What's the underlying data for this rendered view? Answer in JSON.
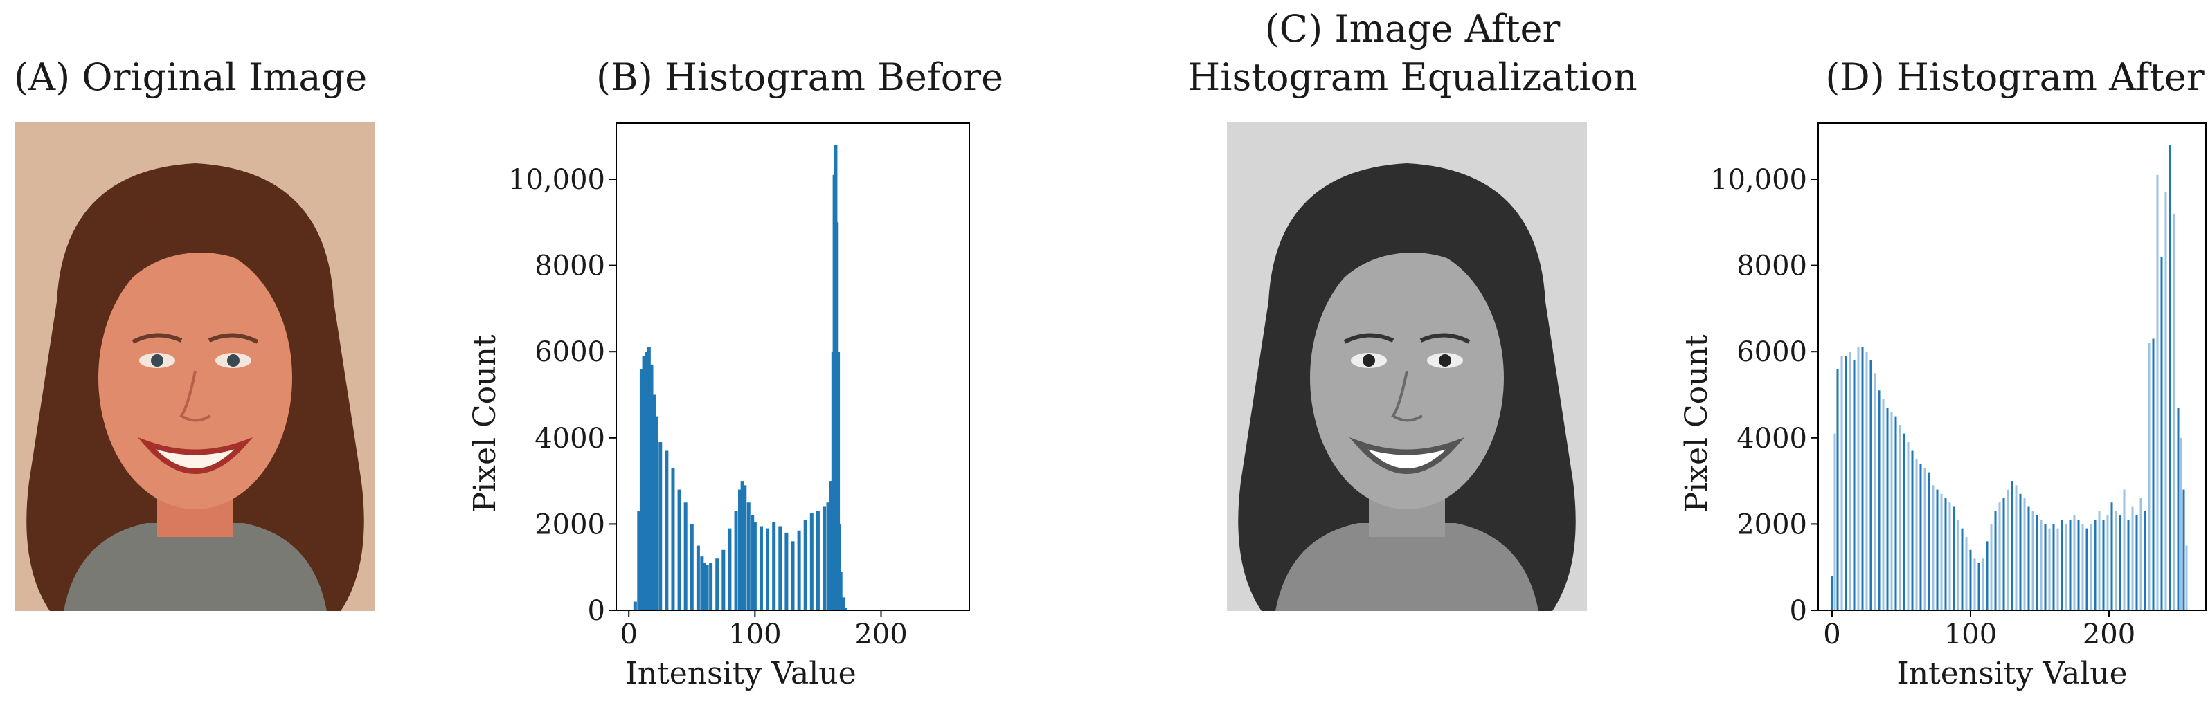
{
  "panels": {
    "a_title": "(A) Original Image",
    "b_title": "(B) Histogram Before",
    "c_title_line1": "(C) Image After",
    "c_title_line2": "Histogram Equalization",
    "d_title": "(D) Histogram After"
  },
  "colors": {
    "bar": "#1f77b4",
    "bar_light": "#9cc3e4",
    "photo_bg_color": "#d8b59a",
    "photo_bg_gray": "#d9d9d9"
  },
  "chart_data": [
    {
      "type": "bar",
      "panel": "B",
      "title": "(B) Histogram Before",
      "xlabel": "Intensity Value",
      "ylabel": "Pixel Count",
      "xlim": [
        -10,
        270
      ],
      "ylim": [
        0,
        11300
      ],
      "xticks": [
        0,
        100,
        200
      ],
      "xtick_labels": [
        "0",
        "100",
        "200"
      ],
      "yticks": [
        0,
        2000,
        4000,
        6000,
        8000,
        10000
      ],
      "ytick_labels": [
        "0",
        "2000",
        "4000",
        "6000",
        "8000",
        "10,000"
      ],
      "grid": false,
      "x": [
        5,
        8,
        10,
        12,
        14,
        16,
        18,
        20,
        22,
        25,
        30,
        35,
        40,
        45,
        50,
        55,
        58,
        60,
        62,
        65,
        70,
        75,
        80,
        85,
        88,
        90,
        92,
        95,
        98,
        100,
        105,
        110,
        115,
        120,
        125,
        130,
        135,
        140,
        145,
        150,
        155,
        158,
        160,
        162,
        163,
        164,
        165,
        166,
        167,
        168,
        170,
        172
      ],
      "values": [
        200,
        2300,
        5600,
        5900,
        6000,
        6100,
        5700,
        5000,
        4500,
        3900,
        3700,
        3300,
        2800,
        2500,
        2000,
        1500,
        1250,
        1100,
        1050,
        1100,
        1200,
        1400,
        1900,
        2300,
        2800,
        3000,
        2900,
        2500,
        2200,
        2050,
        1950,
        1900,
        2050,
        1950,
        1800,
        1600,
        1850,
        2100,
        2250,
        2300,
        2400,
        2500,
        3000,
        6000,
        10100,
        10800,
        9000,
        6000,
        2000,
        900,
        300,
        50
      ]
    },
    {
      "type": "bar",
      "panel": "D",
      "title": "(D) Histogram After",
      "xlabel": "Intensity Value",
      "ylabel": "Pixel Count",
      "xlim": [
        -10,
        270
      ],
      "ylim": [
        0,
        11300
      ],
      "xticks": [
        0,
        100,
        200
      ],
      "xtick_labels": [
        "0",
        "100",
        "200"
      ],
      "yticks": [
        0,
        2000,
        4000,
        6000,
        8000,
        10000
      ],
      "ytick_labels": [
        "0",
        "2000",
        "4000",
        "6000",
        "8000",
        "10,000"
      ],
      "grid": false,
      "x": [
        0,
        2,
        4,
        7,
        10,
        13,
        16,
        19,
        22,
        25,
        28,
        31,
        34,
        37,
        40,
        43,
        46,
        49,
        52,
        55,
        58,
        61,
        64,
        67,
        70,
        73,
        76,
        79,
        82,
        85,
        88,
        91,
        94,
        97,
        100,
        103,
        106,
        109,
        112,
        115,
        118,
        121,
        124,
        127,
        130,
        133,
        136,
        139,
        142,
        145,
        148,
        151,
        154,
        157,
        160,
        163,
        166,
        169,
        172,
        175,
        178,
        181,
        184,
        187,
        190,
        193,
        196,
        199,
        202,
        205,
        208,
        211,
        214,
        217,
        220,
        223,
        226,
        229,
        232,
        235,
        238,
        241,
        244,
        247,
        250,
        252,
        254,
        256
      ],
      "values": [
        800,
        4100,
        5600,
        5900,
        5900,
        6000,
        5800,
        6100,
        6100,
        6000,
        5800,
        5500,
        5100,
        4900,
        4700,
        4600,
        4500,
        4300,
        4100,
        3900,
        3700,
        3500,
        3400,
        3300,
        3200,
        2900,
        2800,
        2700,
        2600,
        2500,
        2400,
        2100,
        1900,
        1700,
        1400,
        1200,
        1100,
        1200,
        1600,
        2000,
        2300,
        2500,
        2600,
        2800,
        3000,
        2900,
        2700,
        2600,
        2400,
        2300,
        2200,
        2100,
        2000,
        1900,
        2000,
        1900,
        2100,
        2000,
        2100,
        2200,
        2100,
        2000,
        1900,
        2000,
        2100,
        2300,
        2100,
        2200,
        2500,
        2300,
        2200,
        2800,
        2100,
        2400,
        2200,
        2600,
        2300,
        6200,
        6300,
        10100,
        8200,
        9700,
        10800,
        9200,
        4700,
        4000,
        2800,
        1500
      ]
    }
  ]
}
